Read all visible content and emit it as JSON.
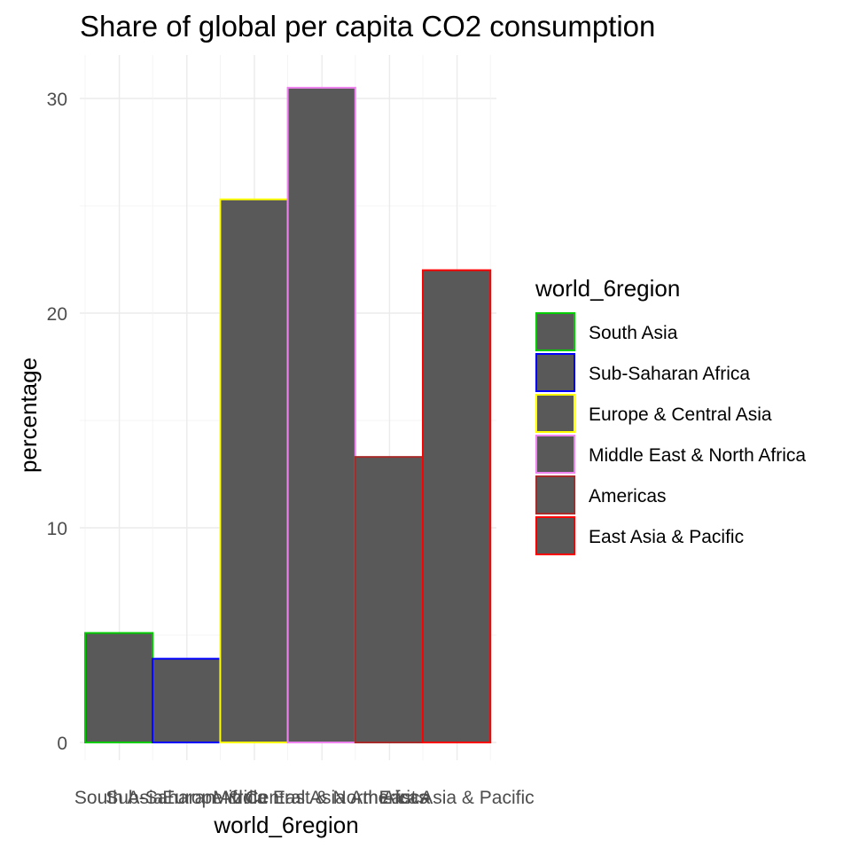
{
  "chart_data": {
    "type": "bar",
    "title": "Share of global per capita CO2 consumption",
    "xlabel": "world_6region",
    "ylabel": "percentage",
    "categories": [
      "South Asia",
      "Sub-Saharan Africa",
      "Europe & Central Asia",
      "Middle East & North Africa",
      "Americas",
      "East Asia & Pacific"
    ],
    "values": [
      5.1,
      3.9,
      25.3,
      30.5,
      13.3,
      22.0
    ],
    "outline_colors": [
      "#00cc00",
      "#0000ff",
      "#ffff00",
      "#ee82ee",
      "#a52a2a",
      "#ff0000"
    ],
    "fill_color": "#595959",
    "ylim": [
      0,
      32
    ],
    "yticks": [
      0,
      10,
      20,
      30
    ],
    "grid": true,
    "legend": {
      "title": "world_6region",
      "placement": "right",
      "entries": [
        "South Asia",
        "Sub-Saharan Africa",
        "Europe & Central Asia",
        "Middle East & North Africa",
        "Americas",
        "East Asia & Pacific"
      ]
    }
  }
}
